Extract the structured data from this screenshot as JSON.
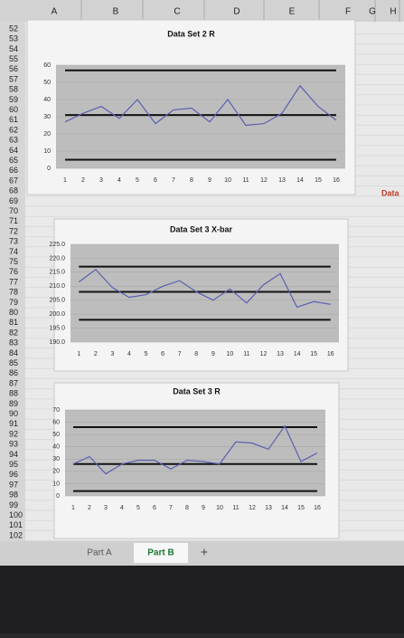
{
  "columns": [
    "A",
    "B",
    "C",
    "D",
    "E",
    "F",
    "G",
    "H"
  ],
  "rows": [
    52,
    53,
    54,
    55,
    56,
    57,
    58,
    59,
    60,
    61,
    62,
    63,
    64,
    65,
    66,
    67,
    68,
    69,
    70,
    71,
    72,
    73,
    74,
    75,
    76,
    77,
    78,
    79,
    80,
    81,
    82,
    83,
    84,
    85,
    86,
    87,
    88,
    89,
    90,
    91,
    92,
    93,
    94,
    95,
    96,
    97,
    98,
    99,
    100,
    101,
    102
  ],
  "side_cell": "Data",
  "tabs": [
    "Part A",
    "Part B"
  ],
  "active_tab": 1,
  "add_tab": "+",
  "chart_data": [
    {
      "type": "line",
      "title": "Data Set 2 R",
      "categories": [
        1,
        2,
        3,
        4,
        5,
        6,
        7,
        8,
        9,
        10,
        11,
        12,
        13,
        14,
        15,
        16
      ],
      "series": [
        {
          "color": "#5a5fb0",
          "values": [
            27,
            32,
            36,
            29,
            40,
            26,
            34,
            35,
            27,
            40,
            25,
            26,
            32,
            48,
            36,
            28
          ]
        }
      ],
      "hlines": [
        57,
        31,
        5
      ],
      "hline_color": "#111111",
      "ylim": [
        0,
        60
      ],
      "yticks": [
        0,
        10,
        20,
        30,
        40,
        50,
        60
      ]
    },
    {
      "type": "line",
      "title": "Data Set 3 X-bar",
      "categories": [
        1,
        2,
        3,
        4,
        5,
        6,
        7,
        8,
        9,
        10,
        11,
        12,
        13,
        14,
        15,
        16
      ],
      "series": [
        {
          "color": "#5a5fb0",
          "values": [
            211.5,
            216,
            209.5,
            206,
            207,
            210,
            212,
            208,
            205,
            209,
            204,
            210.5,
            214.5,
            202.5,
            204.5,
            203.5
          ]
        }
      ],
      "hlines": [
        217,
        208,
        198
      ],
      "hline_color": "#111111",
      "ylim": [
        190,
        225
      ],
      "yticks": [
        {
          "value": 190,
          "label": "190.0"
        },
        {
          "value": 195,
          "label": "195.0"
        },
        {
          "value": 200,
          "label": "200.0"
        },
        {
          "value": 205,
          "label": "205.0"
        },
        {
          "value": 210,
          "label": "210.0"
        },
        {
          "value": 215,
          "label": "215.0"
        },
        {
          "value": 220,
          "label": "220.0"
        },
        {
          "value": 225,
          "label": "225.0"
        }
      ]
    },
    {
      "type": "line",
      "title": "Data Set 3 R",
      "categories": [
        1,
        2,
        3,
        4,
        5,
        6,
        7,
        8,
        9,
        10,
        11,
        12,
        13,
        14,
        15,
        16
      ],
      "series": [
        {
          "color": "#5a5fb0",
          "values": [
            26,
            32,
            18,
            26,
            29,
            29,
            22,
            29,
            28,
            26,
            44,
            43,
            38,
            57,
            28,
            35
          ]
        }
      ],
      "hlines": [
        56,
        26,
        4
      ],
      "hline_color": "#111111",
      "ylim": [
        0,
        70
      ],
      "yticks": [
        0,
        10,
        20,
        30,
        40,
        50,
        60,
        70
      ]
    }
  ]
}
